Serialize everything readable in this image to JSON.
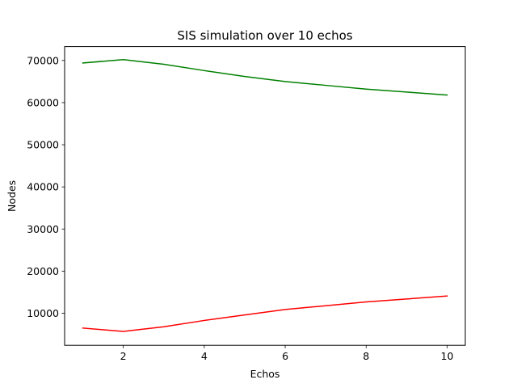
{
  "chart_data": {
    "type": "line",
    "title": "SIS simulation over 10 echos",
    "xlabel": "Echos",
    "ylabel": "Nodes",
    "xlim": [
      0.55,
      10.45
    ],
    "ylim": [
      2400,
      73300
    ],
    "xticks": [
      2,
      4,
      6,
      8,
      10
    ],
    "yticks": [
      10000,
      20000,
      30000,
      40000,
      50000,
      60000,
      70000
    ],
    "grid": false,
    "legend": "none",
    "x": [
      1,
      2,
      3,
      4,
      5,
      6,
      7,
      8,
      9,
      10
    ],
    "series": [
      {
        "color": "#008000",
        "values": [
          69400,
          70200,
          69100,
          67600,
          66200,
          65000,
          64100,
          63200,
          62500,
          61800
        ]
      },
      {
        "color": "#ff0000",
        "values": [
          6500,
          5700,
          6800,
          8300,
          9600,
          10900,
          11800,
          12700,
          13400,
          14100
        ]
      }
    ]
  }
}
